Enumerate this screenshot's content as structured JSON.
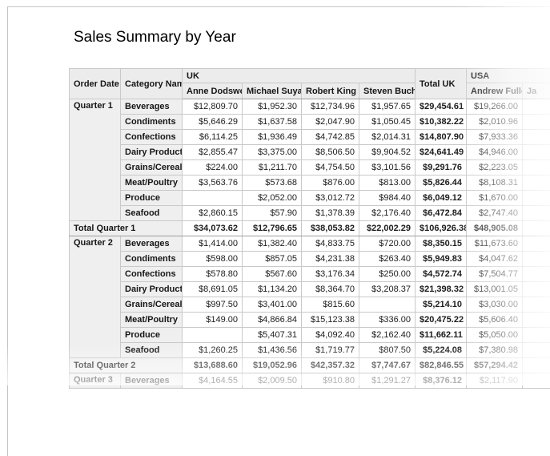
{
  "report": {
    "title": "Sales Summary by Year",
    "colors": {
      "header_bg": "#ececec",
      "label_bg": "#efefef",
      "grid_border": "#c9c9c9",
      "strong_border": "#9e9e9e",
      "text": "#1c1c1c",
      "faded_text": "#a8a8a8"
    },
    "columns": {
      "row_headers": [
        "Order Date",
        "Category Name"
      ],
      "uk_group_label": "UK",
      "uk_employees": [
        "Anne Dodswort",
        "Michael Suyama",
        "Robert King",
        "Steven Buchana"
      ],
      "total_uk_label": "Total UK",
      "usa_group_label": "USA",
      "usa_employees": [
        "Andrew Fuller",
        "Ja"
      ]
    },
    "sections": [
      {
        "quarter": "Quarter 1",
        "rows": [
          {
            "category": "Beverages",
            "values": [
              "$12,809.70",
              "$1,952.30",
              "$12,734.96",
              "$1,957.65",
              "$29,454.61",
              "$19,266.00"
            ]
          },
          {
            "category": "Condiments",
            "values": [
              "$5,646.29",
              "$1,637.58",
              "$2,047.90",
              "$1,050.45",
              "$10,382.22",
              "$2,010.96"
            ]
          },
          {
            "category": "Confections",
            "values": [
              "$6,114.25",
              "$1,936.49",
              "$4,742.85",
              "$2,014.31",
              "$14,807.90",
              "$7,933.36"
            ]
          },
          {
            "category": "Dairy Products",
            "values": [
              "$2,855.47",
              "$3,375.00",
              "$8,506.50",
              "$9,904.52",
              "$24,641.49",
              "$4,946.00"
            ]
          },
          {
            "category": "Grains/Cereals",
            "values": [
              "$224.00",
              "$1,211.70",
              "$4,754.50",
              "$3,101.56",
              "$9,291.76",
              "$2,223.05"
            ]
          },
          {
            "category": "Meat/Poultry",
            "values": [
              "$3,563.76",
              "$573.68",
              "$876.00",
              "$813.00",
              "$5,826.44",
              "$8,108.31"
            ]
          },
          {
            "category": "Produce",
            "values": [
              "",
              "$2,052.00",
              "$3,012.72",
              "$984.40",
              "$6,049.12",
              "$1,670.00"
            ]
          },
          {
            "category": "Seafood",
            "values": [
              "$2,860.15",
              "$57.90",
              "$1,378.39",
              "$2,176.40",
              "$6,472.84",
              "$2,747.40"
            ]
          }
        ],
        "total": {
          "label": "Total Quarter 1",
          "values": [
            "$34,073.62",
            "$12,796.65",
            "$38,053.82",
            "$22,002.29",
            "$106,926.38",
            "$48,905.08"
          ]
        }
      },
      {
        "quarter": "Quarter 2",
        "rows": [
          {
            "category": "Beverages",
            "values": [
              "$1,414.00",
              "$1,382.40",
              "$4,833.75",
              "$720.00",
              "$8,350.15",
              "$11,673.60"
            ]
          },
          {
            "category": "Condiments",
            "values": [
              "$598.00",
              "$857.05",
              "$4,231.38",
              "$263.40",
              "$5,949.83",
              "$4,047.62"
            ]
          },
          {
            "category": "Confections",
            "values": [
              "$578.80",
              "$567.60",
              "$3,176.34",
              "$250.00",
              "$4,572.74",
              "$7,504.77"
            ]
          },
          {
            "category": "Dairy Products",
            "values": [
              "$8,691.05",
              "$1,134.20",
              "$8,364.70",
              "$3,208.37",
              "$21,398.32",
              "$13,001.05"
            ]
          },
          {
            "category": "Grains/Cereals",
            "values": [
              "$997.50",
              "$3,401.00",
              "$815.60",
              "",
              "$5,214.10",
              "$3,030.00"
            ]
          },
          {
            "category": "Meat/Poultry",
            "values": [
              "$149.00",
              "$4,866.84",
              "$15,123.38",
              "$336.00",
              "$20,475.22",
              "$5,606.40"
            ]
          },
          {
            "category": "Produce",
            "values": [
              "",
              "$5,407.31",
              "$4,092.40",
              "$2,162.40",
              "$11,662.11",
              "$5,050.00"
            ]
          },
          {
            "category": "Seafood",
            "values": [
              "$1,260.25",
              "$1,436.56",
              "$1,719.77",
              "$807.50",
              "$5,224.08",
              "$7,380.98"
            ]
          }
        ],
        "total": {
          "label": "Total Quarter 2",
          "values": [
            "$13,688.60",
            "$19,052.96",
            "$42,357.32",
            "$7,747.67",
            "$82,846.55",
            "$57,294.42"
          ]
        }
      },
      {
        "quarter": "Quarter 3",
        "rows": [
          {
            "category": "Beverages",
            "values": [
              "$4,164.55",
              "$2,009.50",
              "$910.80",
              "$1,291.27",
              "$8,376.12",
              "$2,117.90"
            ]
          }
        ],
        "total": null
      }
    ]
  }
}
